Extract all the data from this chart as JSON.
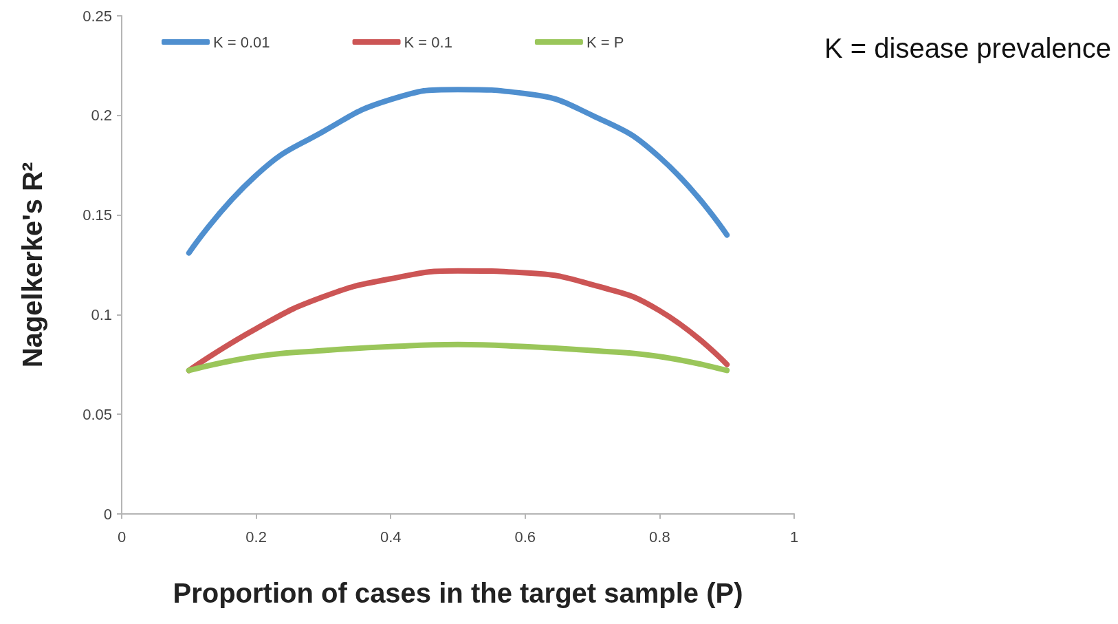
{
  "chart_data": {
    "type": "line",
    "xlabel": "Proportion of cases in the target sample (P)",
    "ylabel": "Nagelkerke's R²",
    "annotations": [
      "K = disease prevalence"
    ],
    "x": [
      0.1,
      0.2,
      0.3,
      0.4,
      0.5,
      0.6,
      0.7,
      0.8,
      0.9
    ],
    "series": [
      {
        "name": "K = 0.01",
        "color": "#4f8fcf",
        "values": [
          0.131,
          0.17,
          0.192,
          0.208,
          0.213,
          0.211,
          0.2,
          0.179,
          0.14
        ]
      },
      {
        "name": "K = 0.1",
        "color": "#cc5555",
        "values": [
          0.072,
          0.093,
          0.109,
          0.118,
          0.122,
          0.121,
          0.115,
          0.102,
          0.075
        ]
      },
      {
        "name": "K = P",
        "color": "#9ac65a",
        "values": [
          0.072,
          0.079,
          0.082,
          0.084,
          0.085,
          0.084,
          0.082,
          0.079,
          0.072
        ]
      }
    ],
    "xlim": [
      0,
      1
    ],
    "xticks": [
      0,
      0.2,
      0.4,
      0.6,
      0.8,
      1
    ],
    "ylim": [
      0,
      0.25
    ],
    "yticks": [
      0,
      0.05,
      0.1,
      0.15,
      0.2,
      0.25
    ],
    "grid": false,
    "legend": "top left",
    "marker": "none",
    "line_style": "solid"
  }
}
